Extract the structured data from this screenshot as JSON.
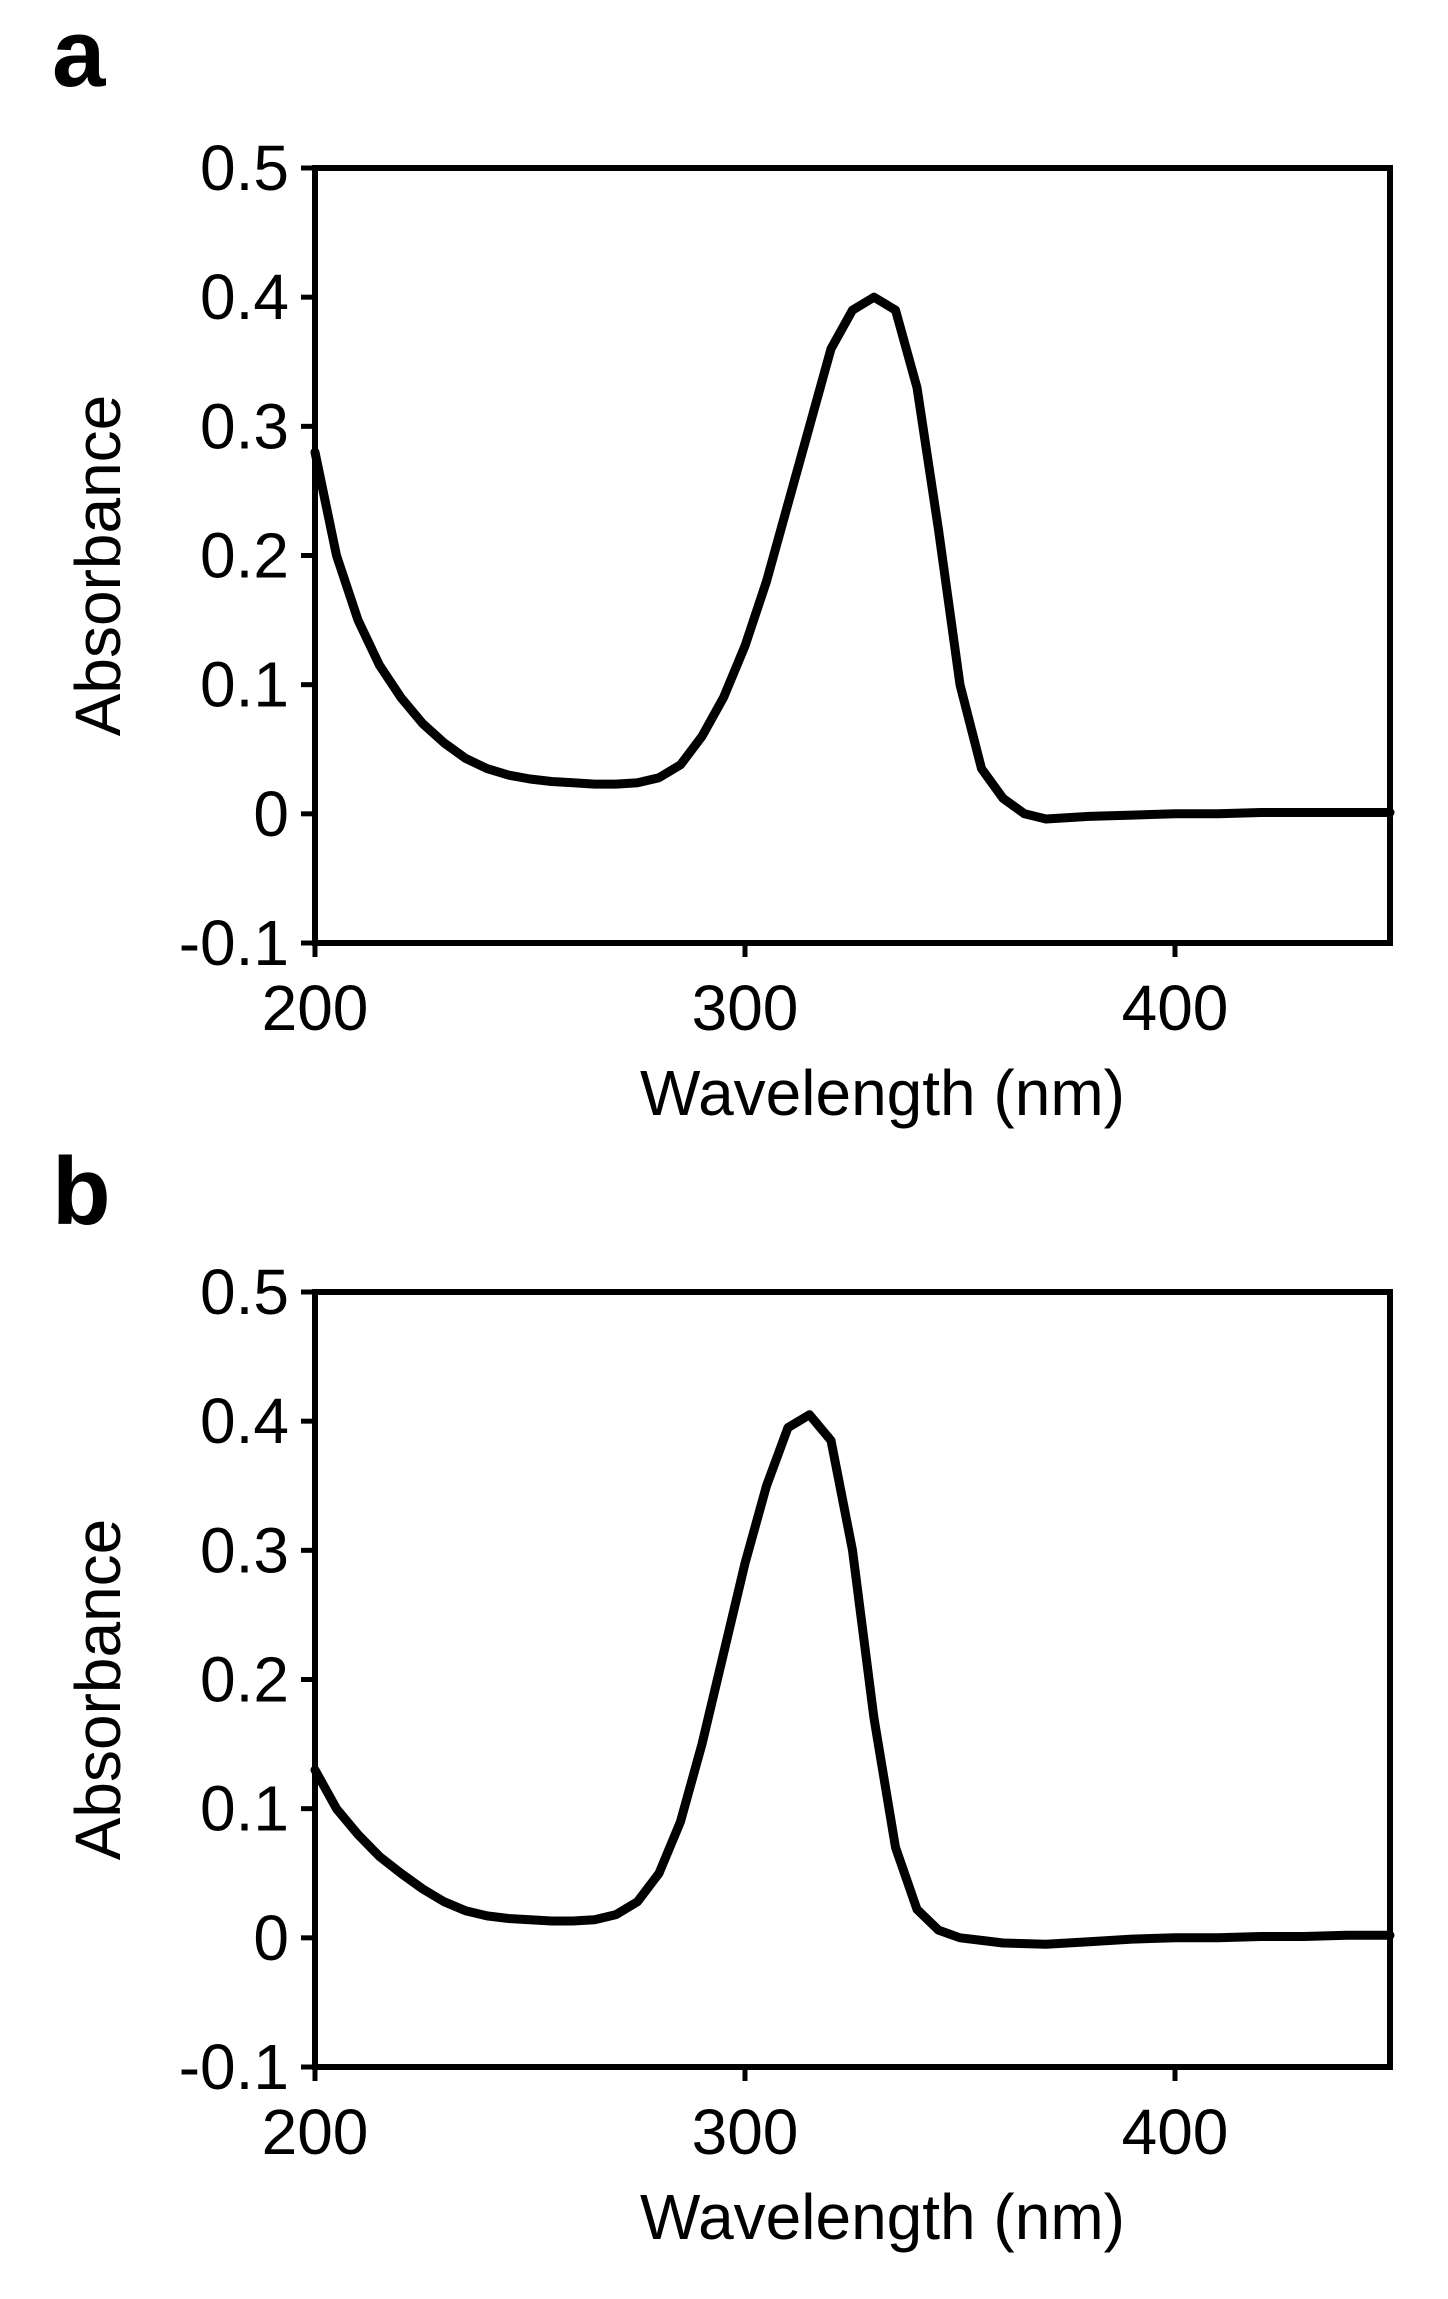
{
  "panels": [
    {
      "id": "a",
      "label": "a"
    },
    {
      "id": "b",
      "label": "b"
    }
  ],
  "chart_data": [
    {
      "type": "line",
      "panel": "a",
      "xlabel": "Wavelength (nm)",
      "ylabel": "Absorbance",
      "xlim": [
        200,
        450
      ],
      "ylim": [
        -0.1,
        0.5
      ],
      "xticks": [
        200,
        300,
        400
      ],
      "xtick_labels": [
        "200",
        "300",
        "400"
      ],
      "yticks": [
        -0.1,
        0,
        0.1,
        0.2,
        0.3,
        0.4,
        0.5
      ],
      "ytick_labels": [
        "-0.1",
        "0",
        "0.1",
        "0.2",
        "0.3",
        "0.4",
        "0.5"
      ],
      "grid": false,
      "color": "#000000",
      "series": [
        {
          "x": [
            200,
            205,
            210,
            215,
            220,
            225,
            230,
            235,
            240,
            245,
            250,
            255,
            260,
            265,
            270,
            275,
            280,
            285,
            290,
            295,
            300,
            305,
            310,
            315,
            320,
            325,
            330,
            335,
            340,
            345,
            350,
            355,
            360,
            365,
            370,
            380,
            390,
            400,
            410,
            420,
            430,
            440,
            450
          ],
          "y": [
            0.28,
            0.2,
            0.15,
            0.115,
            0.09,
            0.07,
            0.055,
            0.043,
            0.035,
            0.03,
            0.027,
            0.025,
            0.024,
            0.023,
            0.023,
            0.024,
            0.028,
            0.038,
            0.06,
            0.09,
            0.13,
            0.18,
            0.24,
            0.3,
            0.36,
            0.39,
            0.4,
            0.39,
            0.33,
            0.22,
            0.1,
            0.035,
            0.012,
            0.0,
            -0.004,
            -0.002,
            -0.001,
            0.0,
            0.0,
            0.001,
            0.001,
            0.001,
            0.001
          ]
        }
      ]
    },
    {
      "type": "line",
      "panel": "b",
      "xlabel": "Wavelength (nm)",
      "ylabel": "Absorbance",
      "xlim": [
        200,
        450
      ],
      "ylim": [
        -0.1,
        0.5
      ],
      "xticks": [
        200,
        300,
        400
      ],
      "xtick_labels": [
        "200",
        "300",
        "400"
      ],
      "yticks": [
        -0.1,
        0,
        0.1,
        0.2,
        0.3,
        0.4,
        0.5
      ],
      "ytick_labels": [
        "-0.1",
        "0",
        "0.1",
        "0.2",
        "0.3",
        "0.4",
        "0.5"
      ],
      "grid": false,
      "color": "#000000",
      "series": [
        {
          "x": [
            200,
            205,
            210,
            215,
            220,
            225,
            230,
            235,
            240,
            245,
            250,
            255,
            260,
            265,
            270,
            275,
            280,
            285,
            290,
            295,
            300,
            305,
            310,
            315,
            320,
            325,
            330,
            335,
            340,
            345,
            350,
            355,
            360,
            370,
            380,
            390,
            400,
            410,
            420,
            430,
            440,
            450
          ],
          "y": [
            0.13,
            0.1,
            0.08,
            0.063,
            0.05,
            0.038,
            0.028,
            0.021,
            0.017,
            0.015,
            0.014,
            0.013,
            0.013,
            0.014,
            0.018,
            0.028,
            0.05,
            0.09,
            0.15,
            0.22,
            0.29,
            0.35,
            0.395,
            0.405,
            0.385,
            0.3,
            0.17,
            0.07,
            0.022,
            0.006,
            0.0,
            -0.002,
            -0.004,
            -0.005,
            -0.003,
            -0.001,
            0.0,
            0.0,
            0.001,
            0.001,
            0.002,
            0.002
          ]
        }
      ]
    }
  ]
}
